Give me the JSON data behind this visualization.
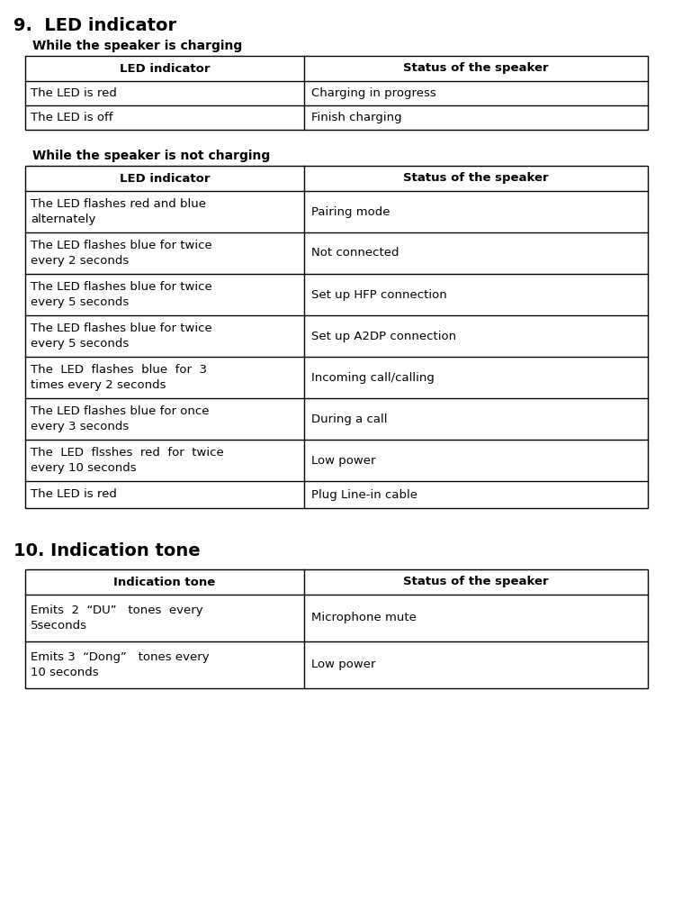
{
  "section9_title": "9.  LED indicator",
  "section10_title": "10. Indication tone",
  "charging_subtitle": "While the speaker is charging",
  "not_charging_subtitle": "While the speaker is not charging",
  "col1_header": "LED indicator",
  "col2_header": "Status of the speaker",
  "charging_rows": [
    [
      "The LED is red",
      "Charging in progress"
    ],
    [
      "The LED is off",
      "Finish charging"
    ]
  ],
  "not_charging_rows": [
    [
      "The LED flashes red and blue\nalternately",
      "Pairing mode"
    ],
    [
      "The LED flashes blue for twice\nevery 2 seconds",
      "Not connected"
    ],
    [
      "The LED flashes blue for twice\nevery 5 seconds",
      "Set up HFP connection"
    ],
    [
      "The LED flashes blue for twice\nevery 5 seconds",
      "Set up A2DP connection"
    ],
    [
      "The  LED  flashes  blue  for  3\ntimes every 2 seconds",
      "Incoming call/calling"
    ],
    [
      "The LED flashes blue for once\nevery 3 seconds",
      "During a call"
    ],
    [
      "The  LED  flsshes  red  for  twice\nevery 10 seconds",
      "Low power"
    ],
    [
      "The LED is red",
      "Plug Line-in cable"
    ]
  ],
  "indication_col1_header": "Indication tone",
  "indication_col2_header": "Status of the speaker",
  "indication_rows": [
    [
      "Emits  2  “DU”   tones  every\n5seconds",
      "Microphone mute"
    ],
    [
      "Emits 3  “Dong”   tones every\n10 seconds",
      "Low power"
    ]
  ],
  "bg_color": "#ffffff",
  "text_color": "#000000",
  "border_color": "#000000",
  "header_bg": "#ffffff"
}
